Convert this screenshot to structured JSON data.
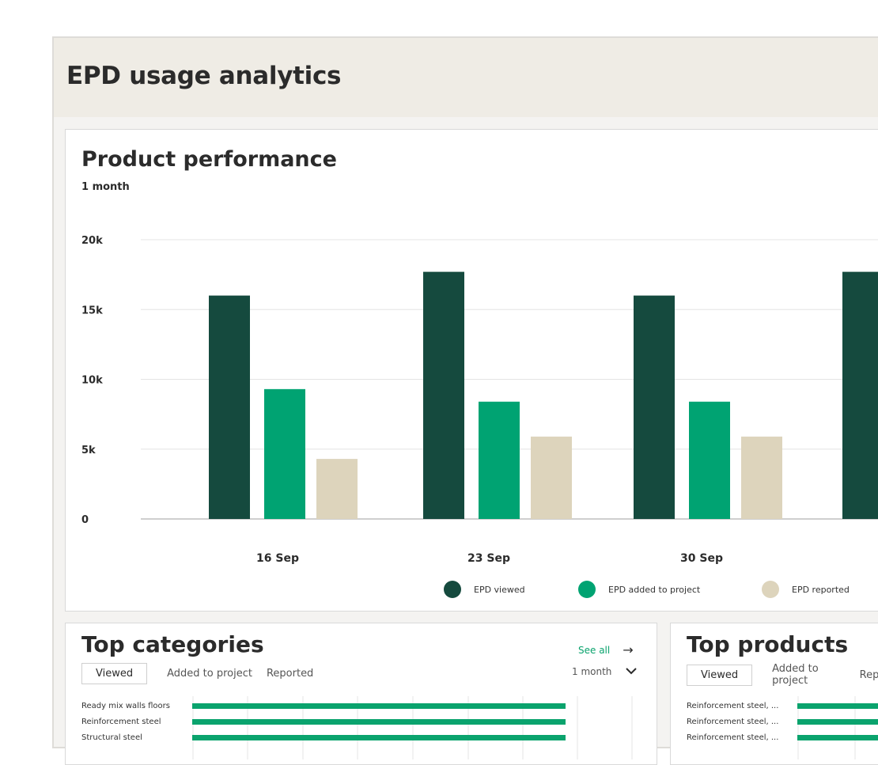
{
  "page": {
    "title": "EPD usage analytics"
  },
  "performance": {
    "title": "Product performance",
    "period": "1 month"
  },
  "chart_data": {
    "type": "bar",
    "categories": [
      "16 Sep",
      "23 Sep",
      "30 Sep",
      ""
    ],
    "series": [
      {
        "name": "EPD viewed",
        "color": "#154a3e",
        "values": [
          16000,
          17700,
          16000,
          17700
        ]
      },
      {
        "name": "EPD added to project",
        "color": "#00a372",
        "values": [
          9300,
          8400,
          8400,
          null
        ]
      },
      {
        "name": "EPD reported",
        "color": "#ddd4bc",
        "values": [
          4300,
          5900,
          5900,
          null
        ]
      }
    ],
    "yticks": [
      "0",
      "5k",
      "10k",
      "15k",
      "20k"
    ],
    "ylim": [
      0,
      20000
    ],
    "grid": true,
    "legend": "bottom"
  },
  "categories": {
    "title": "Top categories",
    "see_all": "See all",
    "period": "1 month",
    "tabs": [
      "Viewed",
      "Added to project",
      "Reported"
    ],
    "rows": [
      {
        "label": "Ready mix walls floors",
        "value": 1.0
      },
      {
        "label": "Reinforcement steel",
        "value": 1.0
      },
      {
        "label": "Structural steel",
        "value": 1.0
      }
    ]
  },
  "products": {
    "title": "Top products",
    "tabs": [
      "Viewed",
      "Added to project",
      "Reported"
    ],
    "rows": [
      {
        "label": "Reinforcement steel, ..."
      },
      {
        "label": "Reinforcement steel, ..."
      },
      {
        "label": "Reinforcement steel, ..."
      }
    ]
  }
}
